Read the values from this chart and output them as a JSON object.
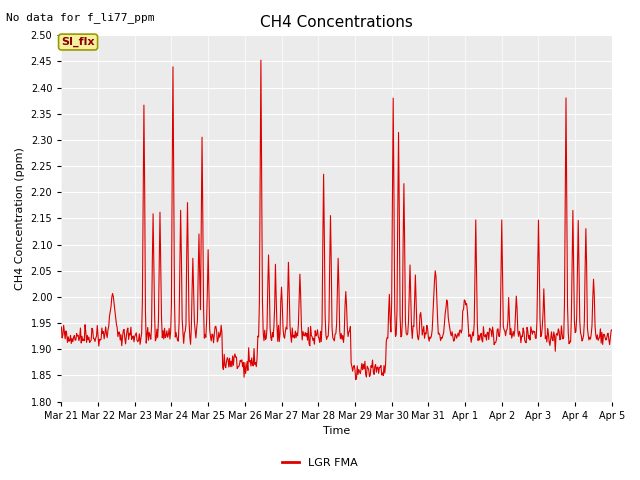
{
  "title": "CH4 Concentrations",
  "xlabel": "Time",
  "ylabel": "CH4 Concentration (ppm)",
  "ylim": [
    1.8,
    2.5
  ],
  "yticks": [
    1.8,
    1.85,
    1.9,
    1.95,
    2.0,
    2.05,
    2.1,
    2.15,
    2.2,
    2.25,
    2.3,
    2.35,
    2.4,
    2.45,
    2.5
  ],
  "line_color": "#dd0000",
  "line_width": 0.8,
  "legend_label": "LGR FMA",
  "annotation_text": "No data for f_li77_ppm",
  "si_flx_label": "SI_flx",
  "x_tick_labels": [
    "Mar 21",
    "Mar 22",
    "Mar 23",
    "Mar 24",
    "Mar 25",
    "Mar 26",
    "Mar 27",
    "Mar 28",
    "Mar 29",
    "Mar 30",
    "Mar 31",
    "Apr 1",
    "Apr 2",
    "Apr 3",
    "Apr 4",
    "Apr 5"
  ],
  "fig_bg_color": "#ffffff",
  "plot_bg_color": "#ebebeb",
  "grid_color": "#ffffff",
  "title_fontsize": 11,
  "label_fontsize": 8,
  "tick_fontsize": 7,
  "annot_fontsize": 8,
  "legend_fontsize": 8
}
